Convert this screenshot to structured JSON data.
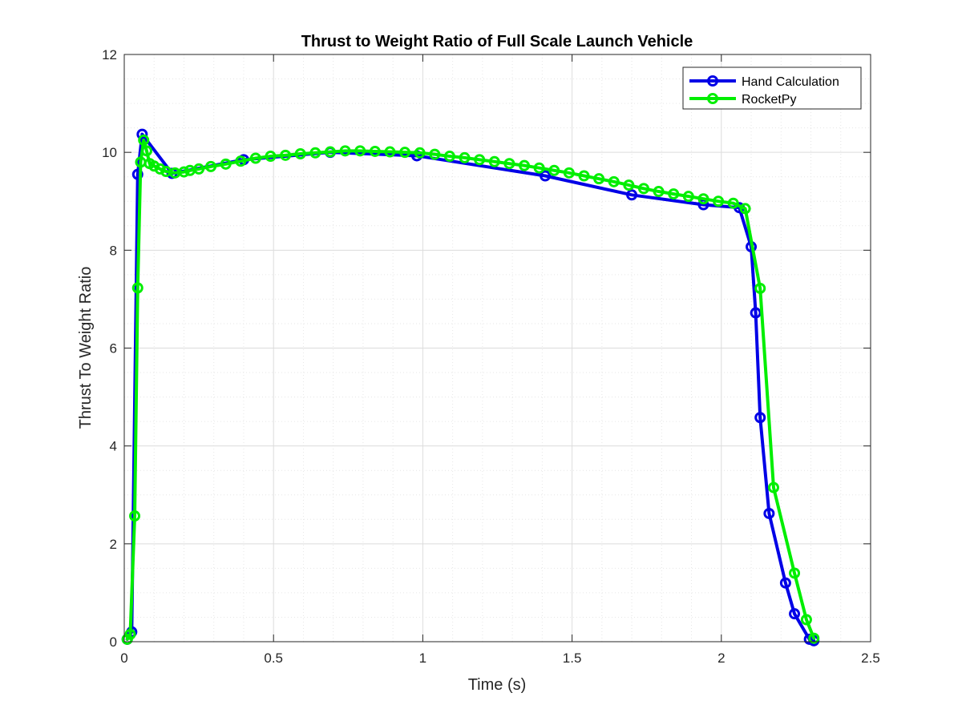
{
  "chart_data": {
    "type": "line",
    "title": "Thrust to Weight Ratio of Full Scale Launch Vehicle",
    "xlabel": "Time (s)",
    "ylabel": "Thrust To Weight Ratio",
    "xlim": [
      0,
      2.5
    ],
    "ylim": [
      0,
      12
    ],
    "xticks": [
      0,
      0.5,
      1,
      1.5,
      2,
      2.5
    ],
    "xtick_labels": [
      "0",
      "0.5",
      "1",
      "1.5",
      "2",
      "2.5"
    ],
    "yticks": [
      0,
      2,
      4,
      6,
      8,
      10,
      12
    ],
    "ytick_labels": [
      "0",
      "2",
      "4",
      "6",
      "8",
      "10",
      "12"
    ],
    "grid": "on",
    "minor_grid": "on",
    "legend_position": "top-right",
    "series": [
      {
        "name": "Hand Calculation",
        "color": "#0000e6",
        "marker": "circle",
        "points": [
          [
            0.01,
            0.05
          ],
          [
            0.025,
            0.2
          ],
          [
            0.045,
            9.55
          ],
          [
            0.06,
            10.37
          ],
          [
            0.16,
            9.57
          ],
          [
            0.4,
            9.85
          ],
          [
            0.69,
            10.0
          ],
          [
            0.98,
            9.93
          ],
          [
            1.41,
            9.52
          ],
          [
            1.7,
            9.13
          ],
          [
            1.94,
            8.93
          ],
          [
            2.06,
            8.87
          ],
          [
            2.1,
            8.07
          ],
          [
            2.115,
            6.72
          ],
          [
            2.13,
            4.58
          ],
          [
            2.16,
            2.62
          ],
          [
            2.215,
            1.2
          ],
          [
            2.245,
            0.57
          ],
          [
            2.295,
            0.05
          ],
          [
            2.31,
            0.02
          ]
        ]
      },
      {
        "name": "RocketPy",
        "color": "#00ee00",
        "marker": "circle",
        "points": [
          [
            0.01,
            0.05
          ],
          [
            0.02,
            0.15
          ],
          [
            0.035,
            2.57
          ],
          [
            0.045,
            7.23
          ],
          [
            0.055,
            9.8
          ],
          [
            0.065,
            10.25
          ],
          [
            0.075,
            10.03
          ],
          [
            0.085,
            9.77
          ],
          [
            0.1,
            9.72
          ],
          [
            0.12,
            9.66
          ],
          [
            0.14,
            9.61
          ],
          [
            0.17,
            9.58
          ],
          [
            0.2,
            9.6
          ],
          [
            0.22,
            9.63
          ],
          [
            0.25,
            9.66
          ],
          [
            0.29,
            9.71
          ],
          [
            0.34,
            9.76
          ],
          [
            0.39,
            9.82
          ],
          [
            0.44,
            9.88
          ],
          [
            0.49,
            9.92
          ],
          [
            0.54,
            9.94
          ],
          [
            0.59,
            9.97
          ],
          [
            0.64,
            9.99
          ],
          [
            0.69,
            10.01
          ],
          [
            0.74,
            10.03
          ],
          [
            0.79,
            10.03
          ],
          [
            0.84,
            10.02
          ],
          [
            0.89,
            10.01
          ],
          [
            0.94,
            10.0
          ],
          [
            0.99,
            9.99
          ],
          [
            1.04,
            9.96
          ],
          [
            1.09,
            9.92
          ],
          [
            1.14,
            9.89
          ],
          [
            1.19,
            9.85
          ],
          [
            1.24,
            9.81
          ],
          [
            1.29,
            9.77
          ],
          [
            1.34,
            9.73
          ],
          [
            1.39,
            9.68
          ],
          [
            1.44,
            9.63
          ],
          [
            1.49,
            9.58
          ],
          [
            1.54,
            9.52
          ],
          [
            1.59,
            9.46
          ],
          [
            1.64,
            9.4
          ],
          [
            1.69,
            9.33
          ],
          [
            1.74,
            9.26
          ],
          [
            1.79,
            9.2
          ],
          [
            1.84,
            9.15
          ],
          [
            1.89,
            9.1
          ],
          [
            1.94,
            9.05
          ],
          [
            1.99,
            9.0
          ],
          [
            2.04,
            8.96
          ],
          [
            2.08,
            8.85
          ],
          [
            2.13,
            7.22
          ],
          [
            2.175,
            3.15
          ],
          [
            2.245,
            1.4
          ],
          [
            2.285,
            0.45
          ],
          [
            2.31,
            0.07
          ]
        ]
      }
    ]
  }
}
